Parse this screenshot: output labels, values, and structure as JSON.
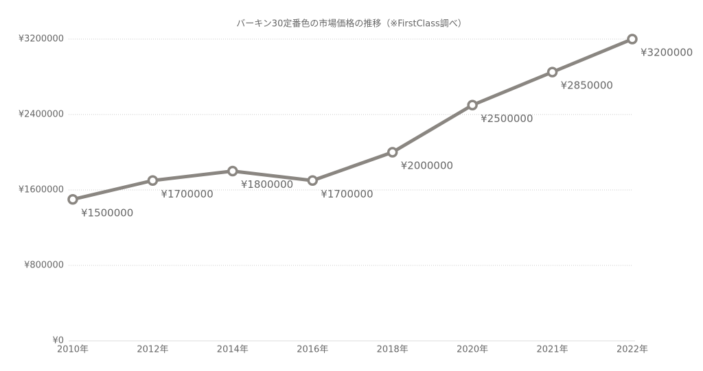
{
  "chart_data": {
    "type": "line",
    "title": "バーキン30定番色の市場価格の推移（※FirstClass調べ）",
    "categories": [
      "2010年",
      "2012年",
      "2014年",
      "2016年",
      "2018年",
      "2020年",
      "2021年",
      "2022年"
    ],
    "series": [
      {
        "color": "#8a8681",
        "values": [
          1500000,
          1700000,
          1800000,
          1700000,
          2000000,
          2500000,
          2850000,
          3200000
        ],
        "value_labels": [
          "¥1500000",
          "¥1700000",
          "¥1800000",
          "¥1700000",
          "¥2000000",
          "¥2500000",
          "¥2850000",
          "¥3200000"
        ]
      }
    ],
    "ylim": [
      0,
      3200000
    ],
    "yticks": [
      {
        "value": 0,
        "label": "¥0"
      },
      {
        "value": 800000,
        "label": "¥800000"
      },
      {
        "value": 1600000,
        "label": "¥1600000"
      },
      {
        "value": 2400000,
        "label": "¥2400000"
      },
      {
        "value": 3200000,
        "label": "¥3200000"
      }
    ],
    "grid": true
  }
}
